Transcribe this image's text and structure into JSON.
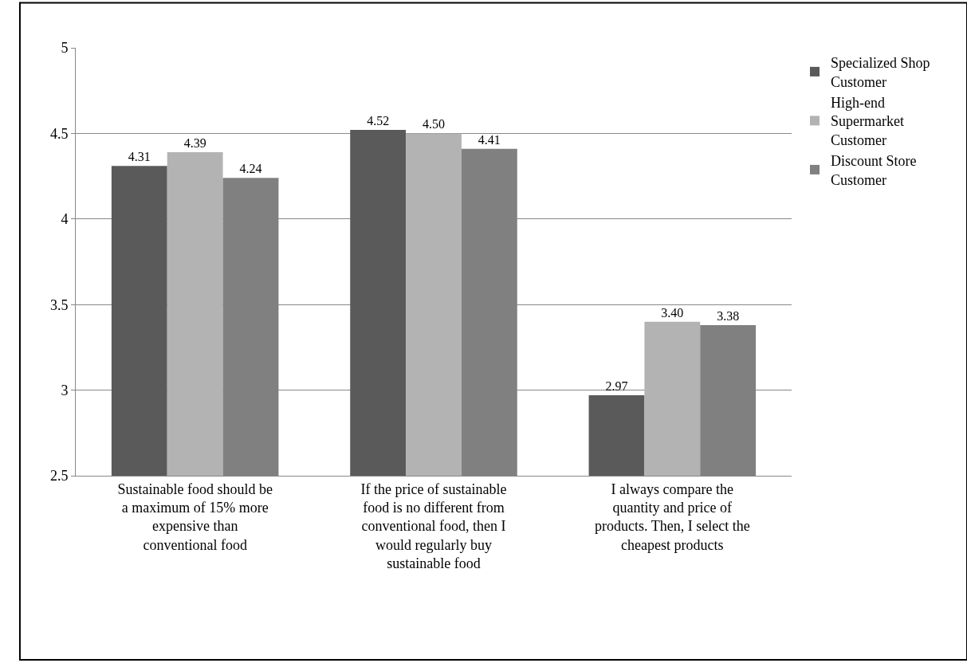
{
  "chart_data": {
    "type": "bar",
    "categories": [
      "Sustainable food should be\na maximum of 15% more\nexpensive than\nconventional food",
      "If the price of sustainable\nfood is no different from\nconventional food, then I\nwould regularly buy\nsustainable food",
      "I always compare the\nquantity and price of\nproducts. Then, I select the\ncheapest products"
    ],
    "series": [
      {
        "name": "Specialized Shop\nCustomer",
        "color": "#5a5a5a",
        "values": [
          4.31,
          4.52,
          2.97
        ],
        "value_labels": [
          "4.31",
          "4.52",
          "2.97"
        ]
      },
      {
        "name": "High-end\nSupermarket\nCustomer",
        "color": "#b3b3b3",
        "values": [
          4.39,
          4.5,
          3.4
        ],
        "value_labels": [
          "4.39",
          "4.50",
          "3.40"
        ]
      },
      {
        "name": "Discount Store\nCustomer",
        "color": "#808080",
        "values": [
          4.24,
          4.41,
          3.38
        ],
        "value_labels": [
          "4.24",
          "4.41",
          "3.38"
        ]
      }
    ],
    "ylim": [
      2.5,
      5
    ],
    "yticks": [
      2.5,
      3,
      3.5,
      4,
      4.5,
      5
    ],
    "grid": "y",
    "legend": "right"
  }
}
